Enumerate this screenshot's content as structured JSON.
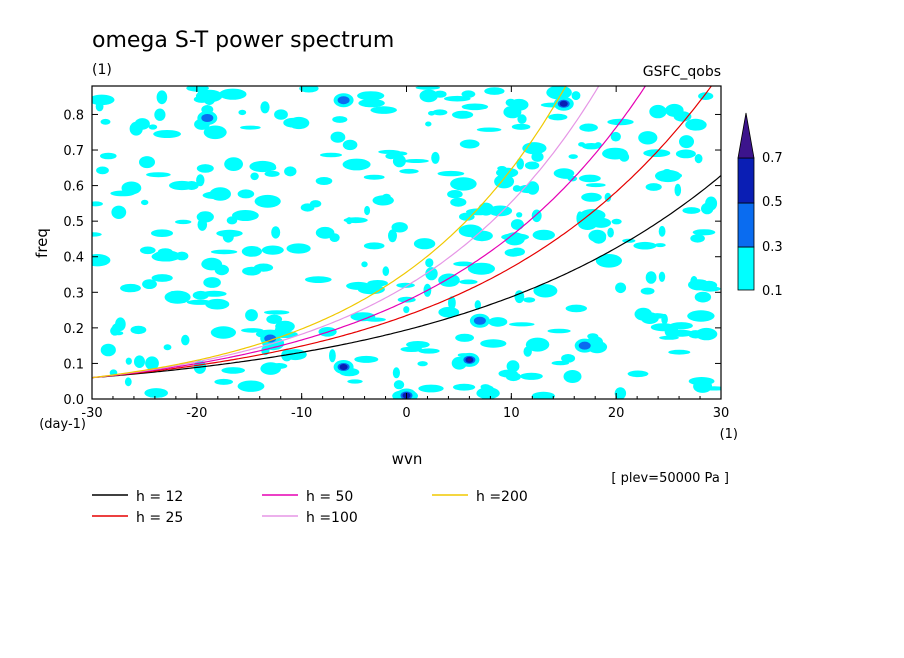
{
  "chart_data": {
    "type": "heatmap",
    "title": "omega S-T power spectrum",
    "subtitle_left": "(1)",
    "subtitle_right": "GSFC_qobs",
    "xlabel": "wvn",
    "ylabel": "freq",
    "x_unit": "(1)",
    "y_unit": "(day-1)",
    "xlim": [
      -30,
      30
    ],
    "ylim": [
      0,
      0.88
    ],
    "x_ticks": [
      -30,
      -20,
      -10,
      0,
      10,
      20,
      30
    ],
    "x_tick_labels": [
      "-30",
      "-20",
      "-10",
      "0",
      "10",
      "20",
      "30"
    ],
    "y_ticks": [
      0,
      0.1,
      0.2,
      0.3,
      0.4,
      0.5,
      0.6,
      0.7,
      0.8
    ],
    "y_tick_labels": [
      "0.0",
      "0.1",
      "0.2",
      "0.3",
      "0.4",
      "0.5",
      "0.6",
      "0.7",
      "0.8"
    ],
    "note": "[ plev=50000 Pa ]",
    "colorbar": {
      "levels": [
        0.1,
        0.3,
        0.5,
        0.7
      ],
      "level_labels": [
        "0.1",
        "0.3",
        "0.5",
        "0.7"
      ],
      "colors": [
        "#00ffff",
        "#0a6cf0",
        "#0a1eb4",
        "#3c148c"
      ]
    },
    "dispersion_curves": [
      {
        "name": "h = 12",
        "h": 12,
        "color": "#000000"
      },
      {
        "name": "h = 25",
        "h": 25,
        "color": "#e60000"
      },
      {
        "name": "h = 50",
        "h": 50,
        "color": "#e600b4"
      },
      {
        "name": "h =100",
        "h": 100,
        "color": "#e696e6"
      },
      {
        "name": "h =200",
        "h": 200,
        "color": "#f0c800"
      }
    ],
    "peaks": [
      {
        "x": 6,
        "y": 0.11,
        "level": 0.7
      },
      {
        "x": 15,
        "y": 0.83,
        "level": 0.5
      },
      {
        "x": -6,
        "y": 0.09,
        "level": 0.5
      },
      {
        "x": 0,
        "y": 0.01,
        "level": 0.5
      },
      {
        "x": 7,
        "y": 0.22,
        "level": 0.3
      },
      {
        "x": -13,
        "y": 0.17,
        "level": 0.3
      },
      {
        "x": -19,
        "y": 0.79,
        "level": 0.3
      },
      {
        "x": -6,
        "y": 0.84,
        "level": 0.3
      },
      {
        "x": 17,
        "y": 0.15,
        "level": 0.3
      }
    ]
  }
}
